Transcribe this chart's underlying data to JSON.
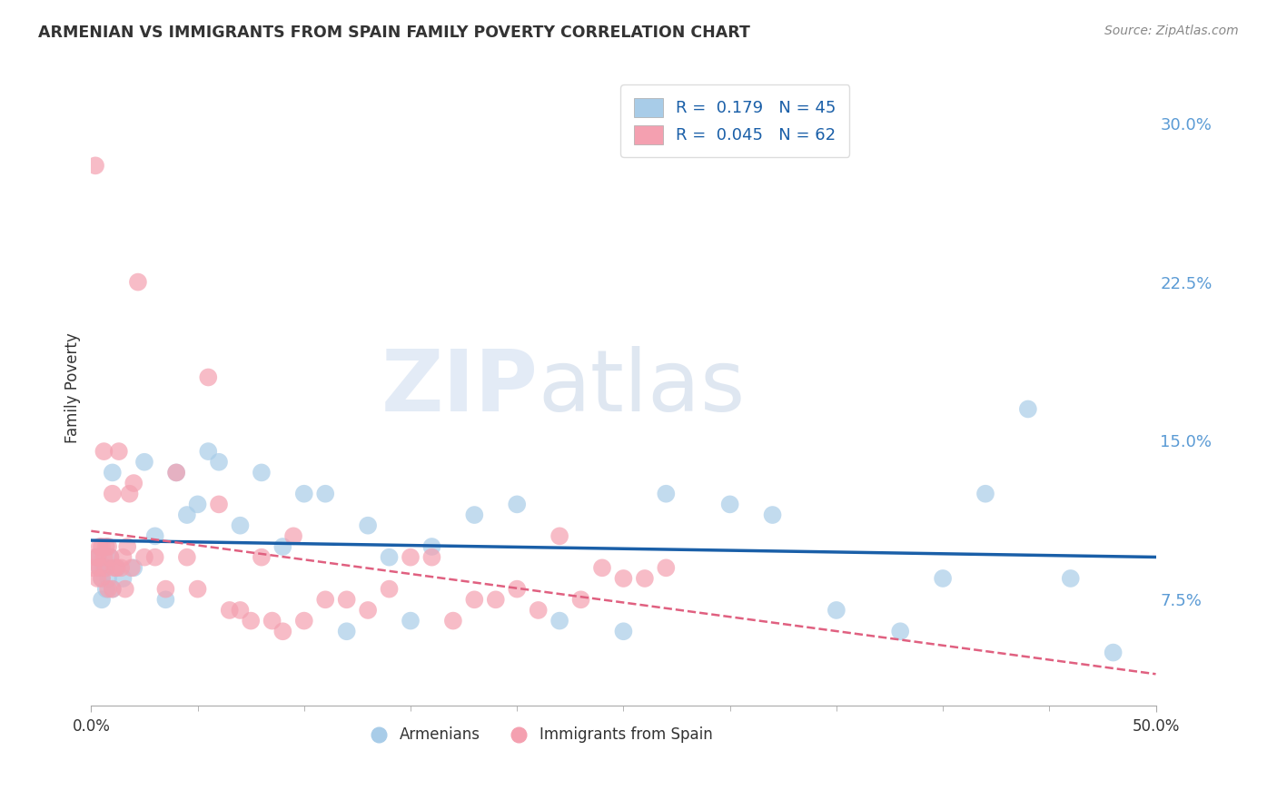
{
  "title": "ARMENIAN VS IMMIGRANTS FROM SPAIN FAMILY POVERTY CORRELATION CHART",
  "source": "Source: ZipAtlas.com",
  "ylabel": "Family Poverty",
  "ytick_vals": [
    7.5,
    15.0,
    22.5,
    30.0
  ],
  "xmin": 0.0,
  "xmax": 50.0,
  "ymin": 2.5,
  "ymax": 32.5,
  "r_armenian": "0.179",
  "n_armenian": "45",
  "r_spain": "0.045",
  "n_spain": "62",
  "color_armenian": "#a8cce8",
  "color_spain": "#f4a0b0",
  "line_armenian": "#1a5fa8",
  "line_spain": "#e06080",
  "armenians_x": [
    0.3,
    0.4,
    0.5,
    0.5,
    0.6,
    0.7,
    0.8,
    0.9,
    1.0,
    1.0,
    1.2,
    1.5,
    2.0,
    2.5,
    3.0,
    3.5,
    4.0,
    4.5,
    5.0,
    5.5,
    6.0,
    7.0,
    8.0,
    9.0,
    10.0,
    11.0,
    12.0,
    13.0,
    14.0,
    15.0,
    16.0,
    18.0,
    20.0,
    22.0,
    25.0,
    27.0,
    30.0,
    32.0,
    35.0,
    38.0,
    40.0,
    42.0,
    44.0,
    46.0,
    48.0
  ],
  "armenians_y": [
    9.5,
    9.0,
    8.5,
    7.5,
    9.0,
    8.0,
    8.5,
    9.5,
    13.5,
    8.0,
    9.0,
    8.5,
    9.0,
    14.0,
    10.5,
    7.5,
    13.5,
    11.5,
    12.0,
    14.5,
    14.0,
    11.0,
    13.5,
    10.0,
    12.5,
    12.5,
    6.0,
    11.0,
    9.5,
    6.5,
    10.0,
    11.5,
    12.0,
    6.5,
    6.0,
    12.5,
    12.0,
    11.5,
    7.0,
    6.0,
    8.5,
    12.5,
    16.5,
    8.5,
    5.0
  ],
  "spain_x": [
    0.1,
    0.2,
    0.2,
    0.3,
    0.3,
    0.4,
    0.4,
    0.5,
    0.5,
    0.6,
    0.6,
    0.7,
    0.7,
    0.8,
    0.8,
    0.9,
    1.0,
    1.0,
    1.1,
    1.2,
    1.3,
    1.4,
    1.5,
    1.6,
    1.7,
    1.8,
    1.9,
    2.0,
    2.2,
    2.5,
    3.0,
    3.5,
    4.0,
    4.5,
    5.0,
    5.5,
    6.0,
    6.5,
    7.0,
    7.5,
    8.0,
    8.5,
    9.0,
    9.5,
    10.0,
    11.0,
    12.0,
    13.0,
    14.0,
    15.0,
    16.0,
    17.0,
    18.0,
    19.0,
    20.0,
    21.0,
    22.0,
    23.0,
    24.0,
    25.0,
    26.0,
    27.0
  ],
  "spain_y": [
    9.0,
    28.0,
    9.5,
    9.5,
    8.5,
    10.0,
    9.0,
    8.5,
    10.0,
    9.5,
    14.5,
    9.0,
    10.0,
    8.0,
    10.0,
    9.5,
    8.0,
    12.5,
    9.0,
    9.0,
    14.5,
    9.0,
    9.5,
    8.0,
    10.0,
    12.5,
    9.0,
    13.0,
    22.5,
    9.5,
    9.5,
    8.0,
    13.5,
    9.5,
    8.0,
    18.0,
    12.0,
    7.0,
    7.0,
    6.5,
    9.5,
    6.5,
    6.0,
    10.5,
    6.5,
    7.5,
    7.5,
    7.0,
    8.0,
    9.5,
    9.5,
    6.5,
    7.5,
    7.5,
    8.0,
    7.0,
    10.5,
    7.5,
    9.0,
    8.5,
    8.5,
    9.0
  ],
  "watermark_zip": "ZIP",
  "watermark_atlas": "atlas",
  "legend_label_armenian": "Armenians",
  "legend_label_spain": "Immigrants from Spain"
}
